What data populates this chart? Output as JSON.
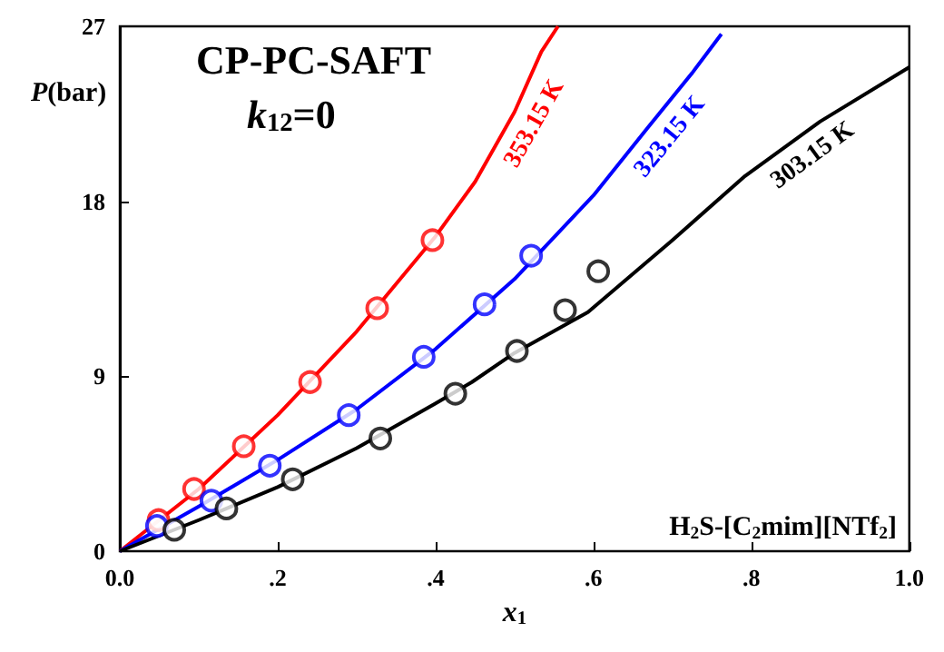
{
  "chart_data": {
    "type": "scatter",
    "title": "CP-PC-SAFT",
    "subtitle": "k$_{12}$=0",
    "xlabel": "x$_{1}$",
    "ylabel": "P(bar)",
    "annotations": [
      "H$_{2}$S-[C$_{2}$mim][NTf$_{2}$]"
    ],
    "marker": "circle",
    "grid": false,
    "legend": false,
    "xlim": [
      0,
      1
    ],
    "xticks": [
      {
        "value": 0,
        "label": "0.0"
      },
      {
        "value": 0.2,
        "label": ".2"
      },
      {
        "value": 0.4,
        "label": ".4"
      },
      {
        "value": 0.6,
        "label": ".6"
      },
      {
        "value": 0.8,
        "label": ".8"
      },
      {
        "value": 1,
        "label": "1.0"
      }
    ],
    "ylim": [
      0,
      27
    ],
    "yticks": [
      0,
      9,
      18,
      27
    ],
    "series": [
      {
        "color": "#ff0000",
        "x": [
          0.049,
          0.094,
          0.157,
          0.241,
          0.326,
          0.396
        ],
        "values": [
          1.6,
          3.2,
          5.4,
          8.7,
          12.5,
          16.0
        ]
      },
      {
        "color": "#0000ff",
        "x": [
          0.047,
          0.116,
          0.19,
          0.29,
          0.385,
          0.462,
          0.521
        ],
        "values": [
          1.3,
          2.6,
          4.4,
          7.0,
          10.0,
          12.7,
          15.2
        ]
      },
      {
        "color": "#000000",
        "x": [
          0.069,
          0.135,
          0.219,
          0.33,
          0.425,
          0.503,
          0.564,
          0.606
        ],
        "values": [
          1.1,
          2.2,
          3.7,
          5.8,
          8.1,
          10.3,
          12.4,
          14.4
        ]
      },
      {
        "type": "line",
        "name": "353.15 K",
        "marker": "none",
        "color": "#ff0000",
        "x": [
          0,
          0.1,
          0.2,
          0.3,
          0.4,
          0.45,
          0.5,
          0.534,
          0.555
        ],
        "values": [
          0,
          3.2,
          7.0,
          11.3,
          16.2,
          19.0,
          22.6,
          25.7,
          27
        ]
      },
      {
        "type": "line",
        "name": "323.15 K",
        "marker": "none",
        "color": "#0000ff",
        "x": [
          0,
          0.1,
          0.2,
          0.3,
          0.4,
          0.5,
          0.6,
          0.667,
          0.725,
          0.762
        ],
        "values": [
          0,
          2.3,
          4.7,
          7.3,
          10.4,
          14.0,
          18.3,
          21.7,
          24.6,
          26.6
        ]
      },
      {
        "type": "line",
        "name": "303.15 K",
        "marker": "none",
        "color": "#000000",
        "x": [
          0,
          0.1,
          0.2,
          0.3,
          0.4,
          0.446,
          0.5,
          0.593,
          0.7,
          0.792,
          0.887,
          1.0
        ],
        "values": [
          0,
          1.6,
          3.3,
          5.3,
          7.6,
          8.7,
          10.2,
          12.3,
          16.0,
          19.3,
          22.1,
          24.9
        ]
      }
    ]
  }
}
